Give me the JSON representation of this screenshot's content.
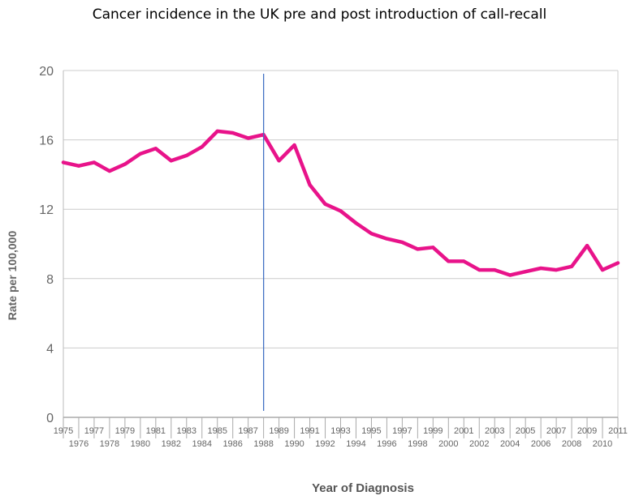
{
  "chart_data": {
    "type": "line",
    "title": "Cancer incidence in the UK pre and post introduction of call-recall",
    "xlabel": "Year of Diagnosis",
    "ylabel": "Rate per 100,000",
    "ylim": [
      0,
      20
    ],
    "yticks": [
      "0",
      "4",
      "8",
      "12",
      "16",
      "20"
    ],
    "x": [
      1975,
      1976,
      1977,
      1978,
      1979,
      1980,
      1981,
      1982,
      1983,
      1984,
      1985,
      1986,
      1987,
      1988,
      1989,
      1990,
      1991,
      1992,
      1993,
      1994,
      1995,
      1996,
      1997,
      1998,
      1999,
      2000,
      2001,
      2002,
      2003,
      2004,
      2005,
      2006,
      2007,
      2008,
      2009,
      2010,
      2011
    ],
    "xtick_labels": [
      "1975",
      "1976",
      "1977",
      "1978",
      "1979",
      "1980",
      "1981",
      "1982",
      "1983",
      "1984",
      "1985",
      "1986",
      "1987",
      "1988",
      "1989",
      "1990",
      "1991",
      "1992",
      "1993",
      "1994",
      "1995",
      "1996",
      "1997",
      "1998",
      "1999",
      "2000",
      "2001",
      "2002",
      "2003",
      "2004",
      "2005",
      "2006",
      "2007",
      "2008",
      "2009",
      "2010",
      "2011"
    ],
    "series": [
      {
        "values": [
          14.7,
          14.5,
          14.7,
          14.2,
          14.6,
          15.2,
          15.5,
          14.8,
          15.1,
          15.6,
          16.5,
          16.4,
          16.1,
          16.3,
          14.8,
          15.7,
          13.4,
          12.3,
          11.9,
          11.2,
          10.6,
          10.3,
          10.1,
          9.7,
          9.8,
          9.0,
          9.0,
          8.5,
          8.5,
          8.2,
          8.4,
          8.6,
          8.5,
          8.7,
          9.9,
          8.5,
          8.9
        ],
        "color": "#e8138a"
      }
    ],
    "reference_line": {
      "x": 1988,
      "color": "#4472c4"
    },
    "grid": {
      "horizontal": true,
      "color": "#cccccc"
    },
    "axis_color": "#666666",
    "label_color": "#666666"
  }
}
